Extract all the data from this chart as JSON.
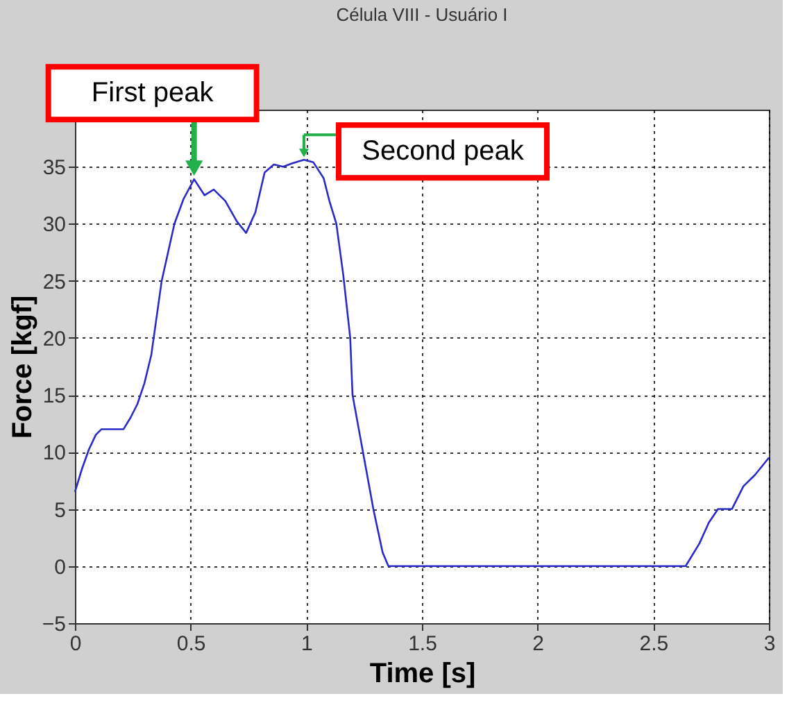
{
  "chart_data": {
    "type": "line",
    "title": "Célula VIII - Usuário I",
    "xlabel": "Time [s]",
    "ylabel": "Force [kgf]",
    "x": [
      0,
      0.03,
      0.06,
      0.09,
      0.115,
      0.15,
      0.21,
      0.24,
      0.27,
      0.3,
      0.33,
      0.375,
      0.43,
      0.47,
      0.515,
      0.56,
      0.6,
      0.65,
      0.7,
      0.74,
      0.78,
      0.82,
      0.86,
      0.9,
      0.94,
      0.99,
      1.03,
      1.075,
      1.1,
      1.13,
      1.16,
      1.19,
      1.2,
      1.245,
      1.29,
      1.33,
      1.355,
      1.4,
      1.6,
      1.8,
      2.0,
      2.2,
      2.4,
      2.64,
      2.7,
      2.74,
      2.78,
      2.84,
      2.89,
      2.94,
      2.98,
      3.0
    ],
    "series": [
      {
        "color": "#2a2ac8",
        "values": [
          6.5,
          8.5,
          10.2,
          11.5,
          12,
          12,
          12,
          13,
          14.2,
          16,
          18.5,
          25,
          30,
          32.2,
          33.9,
          32.5,
          33,
          32,
          30.2,
          29.2,
          31,
          34.5,
          35.2,
          35,
          35.3,
          35.6,
          35.4,
          34,
          32,
          30,
          25.5,
          20,
          15,
          10,
          5,
          1.2,
          0,
          0,
          0,
          0,
          0,
          0,
          0,
          0,
          2,
          3.8,
          5,
          5,
          7,
          8,
          9,
          9.5
        ]
      }
    ],
    "xlim": [
      0,
      3
    ],
    "ylim": [
      -5,
      40
    ],
    "xticks": [
      0,
      0.5,
      1,
      1.5,
      2,
      2.5,
      3
    ],
    "yticks": [
      -5,
      0,
      5,
      10,
      15,
      20,
      25,
      30,
      35
    ],
    "grid": true,
    "line_style": "solid",
    "marker": "none",
    "annotations": [
      {
        "text": "First peak",
        "x": 0.515,
        "y": 33.9
      },
      {
        "text": "Second peak",
        "x": 0.99,
        "y": 35.6
      }
    ]
  }
}
